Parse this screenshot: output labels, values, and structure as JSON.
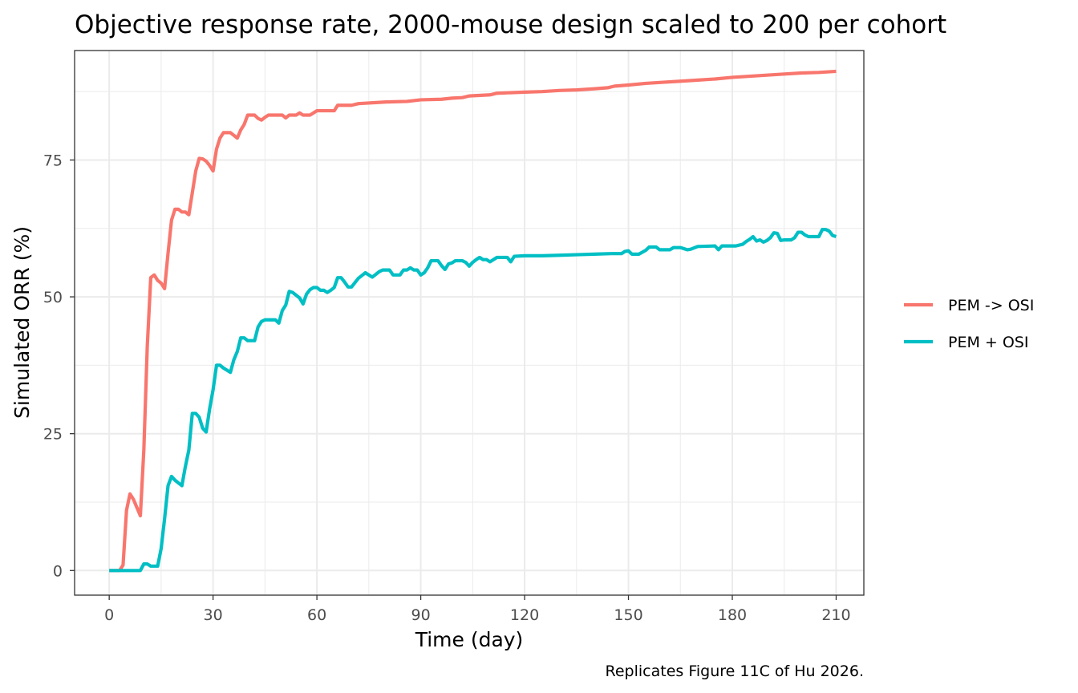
{
  "chart_data": {
    "type": "line",
    "title": "Objective response rate, 2000-mouse design scaled to 200 per cohort",
    "xlabel": "Time (day)",
    "ylabel": "Simulated ORR (%)",
    "caption": "Replicates Figure 11C of Hu 2026.",
    "xlim": [
      -10,
      218
    ],
    "ylim": [
      -4.5,
      95
    ],
    "x_ticks": [
      0,
      30,
      60,
      90,
      120,
      150,
      180,
      210
    ],
    "y_ticks": [
      0,
      25,
      50,
      75
    ],
    "grid": true,
    "legend_position": "right",
    "series": [
      {
        "name": "PEM -> OSI",
        "color": "#F8766D",
        "points": [
          [
            0,
            0
          ],
          [
            3,
            0
          ],
          [
            4,
            1
          ],
          [
            5,
            11
          ],
          [
            6,
            14
          ],
          [
            7,
            13
          ],
          [
            8,
            11.5
          ],
          [
            9,
            10
          ],
          [
            10,
            22
          ],
          [
            11,
            41
          ],
          [
            12,
            53.5
          ],
          [
            13,
            54
          ],
          [
            14,
            53
          ],
          [
            15,
            52.5
          ],
          [
            16,
            51.5
          ],
          [
            17,
            58
          ],
          [
            18,
            64
          ],
          [
            19,
            66
          ],
          [
            20,
            66
          ],
          [
            21,
            65.5
          ],
          [
            22,
            65.5
          ],
          [
            23,
            65
          ],
          [
            24,
            69
          ],
          [
            25,
            73
          ],
          [
            26,
            75.3
          ],
          [
            27,
            75.2
          ],
          [
            28,
            74.8
          ],
          [
            29,
            74
          ],
          [
            30,
            73
          ],
          [
            31,
            77
          ],
          [
            32,
            79
          ],
          [
            33,
            80
          ],
          [
            34,
            80
          ],
          [
            35,
            80
          ],
          [
            36,
            79.5
          ],
          [
            37,
            79
          ],
          [
            38,
            80.5
          ],
          [
            39,
            81.5
          ],
          [
            40,
            83.2
          ],
          [
            41,
            83.2
          ],
          [
            42,
            83.2
          ],
          [
            43,
            82.6
          ],
          [
            44,
            82.3
          ],
          [
            45,
            82.8
          ],
          [
            46,
            83.2
          ],
          [
            47,
            83.2
          ],
          [
            48,
            83.2
          ],
          [
            49,
            83.2
          ],
          [
            50,
            83.2
          ],
          [
            51,
            82.7
          ],
          [
            52,
            83.2
          ],
          [
            53,
            83.2
          ],
          [
            54,
            83.2
          ],
          [
            55,
            83.6
          ],
          [
            56,
            83.2
          ],
          [
            57,
            83.2
          ],
          [
            58,
            83.2
          ],
          [
            59,
            83.6
          ],
          [
            60,
            84
          ],
          [
            65,
            84
          ],
          [
            66,
            85
          ],
          [
            70,
            85
          ],
          [
            72,
            85.3
          ],
          [
            80,
            85.6
          ],
          [
            86,
            85.7
          ],
          [
            90,
            86
          ],
          [
            96,
            86.1
          ],
          [
            99,
            86.3
          ],
          [
            102,
            86.4
          ],
          [
            104,
            86.7
          ],
          [
            110,
            86.9
          ],
          [
            112,
            87.2
          ],
          [
            120,
            87.4
          ],
          [
            125,
            87.5
          ],
          [
            130,
            87.7
          ],
          [
            135,
            87.8
          ],
          [
            140,
            88
          ],
          [
            144,
            88.2
          ],
          [
            146,
            88.5
          ],
          [
            150,
            88.7
          ],
          [
            155,
            89
          ],
          [
            160,
            89.2
          ],
          [
            165,
            89.4
          ],
          [
            170,
            89.6
          ],
          [
            175,
            89.8
          ],
          [
            180,
            90.1
          ],
          [
            185,
            90.3
          ],
          [
            190,
            90.5
          ],
          [
            195,
            90.7
          ],
          [
            200,
            90.9
          ],
          [
            205,
            91
          ],
          [
            210,
            91.2
          ]
        ]
      },
      {
        "name": "PEM + OSI",
        "color": "#00BFC4",
        "points": [
          [
            0,
            0
          ],
          [
            5,
            0
          ],
          [
            9,
            0
          ],
          [
            10,
            1.2
          ],
          [
            11,
            1.2
          ],
          [
            12,
            0.8
          ],
          [
            14,
            0.8
          ],
          [
            15,
            4
          ],
          [
            16,
            9.5
          ],
          [
            17,
            15.5
          ],
          [
            18,
            17.2
          ],
          [
            19,
            16.5
          ],
          [
            20,
            16
          ],
          [
            21,
            15.5
          ],
          [
            22,
            19
          ],
          [
            23,
            22
          ],
          [
            24,
            28.7
          ],
          [
            25,
            28.7
          ],
          [
            26,
            28
          ],
          [
            27,
            26
          ],
          [
            28,
            25.3
          ],
          [
            29,
            29.5
          ],
          [
            30,
            33
          ],
          [
            31,
            37.5
          ],
          [
            32,
            37.5
          ],
          [
            33,
            37
          ],
          [
            34,
            36.6
          ],
          [
            35,
            36.2
          ],
          [
            36,
            38.5
          ],
          [
            37,
            40
          ],
          [
            38,
            42.5
          ],
          [
            39,
            42.5
          ],
          [
            40,
            42
          ],
          [
            41,
            42
          ],
          [
            42,
            42
          ],
          [
            43,
            44.5
          ],
          [
            44,
            45.5
          ],
          [
            45,
            45.8
          ],
          [
            46,
            45.8
          ],
          [
            47,
            45.8
          ],
          [
            48,
            45.8
          ],
          [
            49,
            45.2
          ],
          [
            50,
            47.5
          ],
          [
            51,
            48.5
          ],
          [
            52,
            51
          ],
          [
            53,
            50.8
          ],
          [
            54,
            50.3
          ],
          [
            55,
            49.8
          ],
          [
            56,
            48.7
          ],
          [
            57,
            50.5
          ],
          [
            58,
            51.3
          ],
          [
            59,
            51.7
          ],
          [
            60,
            51.7
          ],
          [
            61,
            51.2
          ],
          [
            62,
            51.2
          ],
          [
            63,
            50.8
          ],
          [
            64,
            51.2
          ],
          [
            65,
            51.7
          ],
          [
            66,
            53.5
          ],
          [
            67,
            53.5
          ],
          [
            68,
            52.7
          ],
          [
            69,
            51.8
          ],
          [
            70,
            51.8
          ],
          [
            71,
            52.6
          ],
          [
            72,
            53.4
          ],
          [
            73,
            53.9
          ],
          [
            74,
            54.4
          ],
          [
            75,
            54
          ],
          [
            76,
            53.6
          ],
          [
            77,
            54.1
          ],
          [
            78,
            54.6
          ],
          [
            79,
            54.9
          ],
          [
            80,
            54.9
          ],
          [
            81,
            54.9
          ],
          [
            82,
            54
          ],
          [
            83,
            54
          ],
          [
            84,
            54
          ],
          [
            85,
            54.9
          ],
          [
            86,
            54.9
          ],
          [
            87,
            55.3
          ],
          [
            88,
            54.9
          ],
          [
            89,
            54.9
          ],
          [
            90,
            54
          ],
          [
            91,
            54.4
          ],
          [
            92,
            55.3
          ],
          [
            93,
            56.6
          ],
          [
            94,
            56.6
          ],
          [
            95,
            56.6
          ],
          [
            96,
            55.7
          ],
          [
            97,
            55
          ],
          [
            98,
            56
          ],
          [
            99,
            56.2
          ],
          [
            100,
            56.6
          ],
          [
            101,
            56.6
          ],
          [
            102,
            56.6
          ],
          [
            103,
            56.3
          ],
          [
            104,
            55.6
          ],
          [
            105,
            56.3
          ],
          [
            106,
            56.8
          ],
          [
            107,
            57.2
          ],
          [
            108,
            56.8
          ],
          [
            109,
            56.8
          ],
          [
            110,
            56.4
          ],
          [
            111,
            56.8
          ],
          [
            112,
            57.2
          ],
          [
            115,
            57.2
          ],
          [
            116,
            56.4
          ],
          [
            117,
            57.4
          ],
          [
            120,
            57.5
          ],
          [
            125,
            57.5
          ],
          [
            130,
            57.6
          ],
          [
            135,
            57.7
          ],
          [
            140,
            57.8
          ],
          [
            145,
            57.9
          ],
          [
            148,
            57.9
          ],
          [
            149,
            58.3
          ],
          [
            150,
            58.4
          ],
          [
            151,
            57.8
          ],
          [
            153,
            57.8
          ],
          [
            155,
            58.5
          ],
          [
            156,
            59.1
          ],
          [
            158,
            59.1
          ],
          [
            159,
            58.6
          ],
          [
            162,
            58.6
          ],
          [
            163,
            59
          ],
          [
            165,
            59
          ],
          [
            167,
            58.6
          ],
          [
            168,
            58.7
          ],
          [
            170,
            59.2
          ],
          [
            175,
            59.3
          ],
          [
            176,
            58.6
          ],
          [
            177,
            59.3
          ],
          [
            180,
            59.3
          ],
          [
            181,
            59.3
          ],
          [
            183,
            59.6
          ],
          [
            184,
            60.1
          ],
          [
            185,
            60.5
          ],
          [
            186,
            61
          ],
          [
            187,
            60.2
          ],
          [
            188,
            60.4
          ],
          [
            189,
            60
          ],
          [
            190,
            60.3
          ],
          [
            191,
            60.8
          ],
          [
            192,
            61.7
          ],
          [
            193,
            61.6
          ],
          [
            194,
            60.3
          ],
          [
            195,
            60.4
          ],
          [
            197,
            60.4
          ],
          [
            198,
            60.8
          ],
          [
            199,
            61.8
          ],
          [
            200,
            61.8
          ],
          [
            201,
            61.3
          ],
          [
            202,
            61
          ],
          [
            204,
            61
          ],
          [
            205,
            61
          ],
          [
            206,
            62.3
          ],
          [
            207,
            62.3
          ],
          [
            208,
            62
          ],
          [
            209,
            61.2
          ],
          [
            210,
            61
          ]
        ]
      }
    ]
  }
}
